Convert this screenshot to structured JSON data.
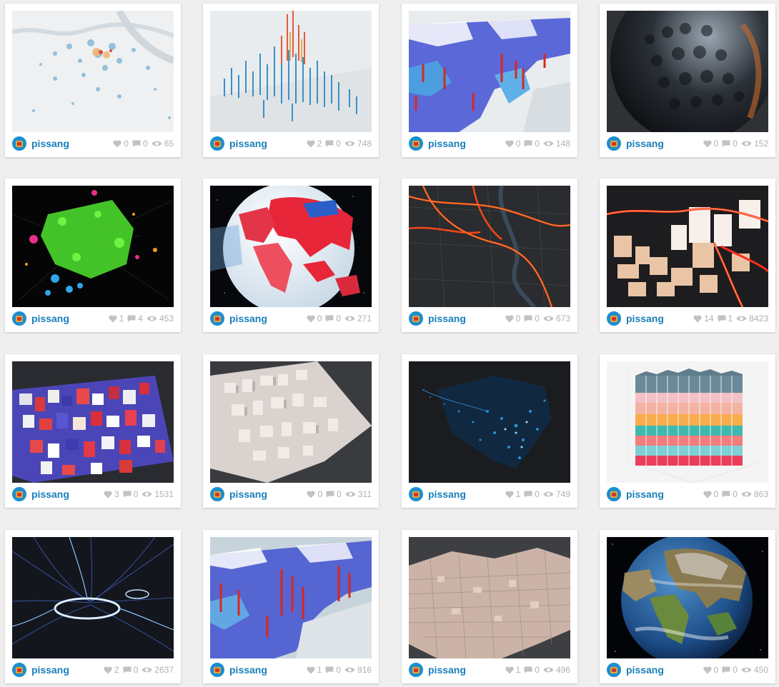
{
  "colors": {
    "username": "#1a7fb8",
    "stat": "#b0b0b0",
    "background": "#efefef"
  },
  "icons": {
    "like": "heart-icon",
    "comment": "comment-icon",
    "view": "eye-icon",
    "author": "avatar"
  },
  "cards": [
    {
      "user": "pissang",
      "likes": "0",
      "comments": "0",
      "views": "65"
    },
    {
      "user": "pissang",
      "likes": "2",
      "comments": "0",
      "views": "748"
    },
    {
      "user": "pissang",
      "likes": "0",
      "comments": "0",
      "views": "148"
    },
    {
      "user": "pissang",
      "likes": "0",
      "comments": "0",
      "views": "152"
    },
    {
      "user": "pissang",
      "likes": "1",
      "comments": "4",
      "views": "453"
    },
    {
      "user": "pissang",
      "likes": "0",
      "comments": "0",
      "views": "271"
    },
    {
      "user": "pissang",
      "likes": "0",
      "comments": "0",
      "views": "673"
    },
    {
      "user": "pissang",
      "likes": "14",
      "comments": "1",
      "views": "8423"
    },
    {
      "user": "pissang",
      "likes": "3",
      "comments": "0",
      "views": "1531"
    },
    {
      "user": "pissang",
      "likes": "0",
      "comments": "0",
      "views": "311"
    },
    {
      "user": "pissang",
      "likes": "1",
      "comments": "0",
      "views": "749"
    },
    {
      "user": "pissang",
      "likes": "0",
      "comments": "0",
      "views": "863"
    },
    {
      "user": "pissang",
      "likes": "2",
      "comments": "0",
      "views": "2637"
    },
    {
      "user": "pissang",
      "likes": "1",
      "comments": "0",
      "views": "916"
    },
    {
      "user": "pissang",
      "likes": "1",
      "comments": "0",
      "views": "496"
    },
    {
      "user": "pissang",
      "likes": "0",
      "comments": "0",
      "views": "450"
    }
  ]
}
